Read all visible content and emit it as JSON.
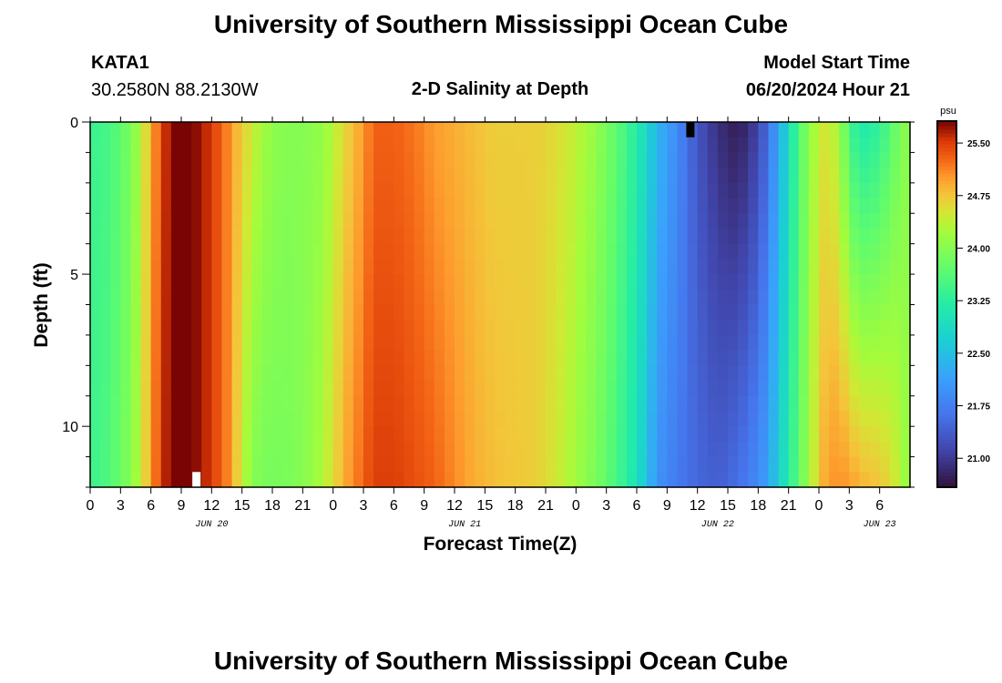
{
  "header": {
    "title": "University of Southern Mississippi Ocean Cube",
    "station_id": "KATA1",
    "station_coords": "30.2580N  88.2130W",
    "model_start_label": "Model Start Time",
    "model_start_value": "06/20/2024 Hour 21",
    "plot_title": "2-D Salinity at Depth"
  },
  "footer": {
    "title": "University of Southern Mississippi Ocean Cube"
  },
  "colors": {
    "background": "#ffffff",
    "text": "#000000",
    "missing_white": "#ffffff",
    "missing_black": "#000000"
  },
  "chart_data": {
    "type": "heatmap",
    "title": "2-D Salinity at Depth",
    "xlabel": "Forecast Time(Z)",
    "ylabel": "Depth (ft)",
    "colorbar_unit": "psu",
    "colormap": "turbo",
    "color_range": [
      20.6,
      25.8
    ],
    "colorbar_ticks": [
      "25.50",
      "24.75",
      "24.00",
      "23.25",
      "22.50",
      "21.75",
      "21.00"
    ],
    "x_range_hours": [
      0,
      81
    ],
    "x_tick_labels": [
      "0",
      "3",
      "6",
      "9",
      "12",
      "15",
      "18",
      "21",
      "0",
      "3",
      "6",
      "9",
      "12",
      "15",
      "18",
      "21",
      "0",
      "3",
      "6",
      "9",
      "12",
      "15",
      "18",
      "21",
      "0",
      "3",
      "6"
    ],
    "date_labels": [
      {
        "text": "JUN 20",
        "hour": 12
      },
      {
        "text": "JUN 21",
        "hour": 37
      },
      {
        "text": "JUN 22",
        "hour": 62
      },
      {
        "text": "JUN 23",
        "hour": 78
      }
    ],
    "y_range_ft": [
      0,
      12
    ],
    "y_tick_labels": [
      "0",
      "5",
      "10"
    ],
    "time_knots_hours": [
      0,
      2,
      4,
      5,
      6,
      7,
      8,
      9,
      10,
      11,
      12,
      13,
      14,
      15,
      16,
      17,
      19,
      21,
      23,
      25,
      27,
      28,
      30,
      32,
      34,
      36,
      38,
      40,
      44,
      46,
      48,
      50,
      52,
      54,
      55,
      56,
      58,
      60,
      62,
      64,
      66,
      67,
      68,
      69,
      70,
      71,
      72,
      72.5,
      73,
      74,
      75,
      76,
      77,
      78,
      79,
      80,
      81
    ],
    "salinity_surface": [
      23.4,
      23.5,
      23.9,
      24.3,
      24.9,
      25.4,
      25.8,
      25.8,
      25.8,
      25.7,
      25.5,
      25.3,
      25.0,
      24.7,
      24.5,
      24.2,
      24.0,
      24.0,
      24.1,
      24.6,
      25.0,
      25.3,
      25.3,
      25.2,
      25.0,
      24.9,
      24.8,
      24.7,
      24.7,
      24.6,
      24.4,
      24.1,
      23.7,
      23.2,
      22.8,
      22.4,
      21.9,
      21.3,
      20.9,
      20.7,
      21.1,
      21.6,
      22.2,
      22.9,
      23.6,
      24.0,
      24.5,
      24.5,
      24.5,
      24.2,
      23.5,
      23.1,
      23.2,
      23.3,
      23.6,
      23.9,
      24.1
    ],
    "salinity_bottom": [
      23.4,
      23.6,
      24.0,
      24.4,
      25.0,
      25.5,
      25.8,
      25.8,
      25.8,
      25.7,
      25.5,
      25.3,
      25.0,
      24.4,
      24.0,
      23.9,
      23.9,
      24.0,
      24.3,
      24.9,
      25.3,
      25.5,
      25.5,
      25.4,
      25.3,
      25.1,
      24.9,
      24.8,
      24.7,
      24.5,
      24.2,
      23.9,
      23.5,
      23.0,
      22.5,
      22.0,
      21.7,
      21.5,
      21.4,
      21.6,
      21.9,
      22.2,
      22.7,
      23.2,
      23.7,
      24.2,
      24.7,
      24.9,
      25.0,
      25.1,
      25.0,
      24.9,
      24.8,
      24.8,
      24.6,
      24.4,
      24.0
    ],
    "missing_markers": [
      {
        "color": "white",
        "hour": 10.5,
        "depth_ft": [
          11.5,
          12
        ]
      },
      {
        "color": "black",
        "hour": 59.3,
        "depth_ft": [
          0,
          0.5
        ]
      }
    ]
  }
}
